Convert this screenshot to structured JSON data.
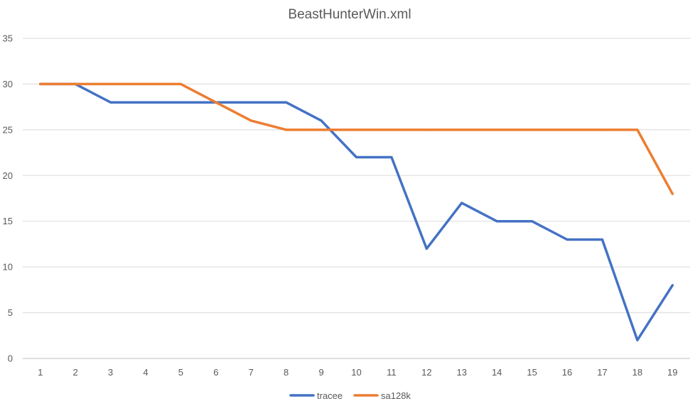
{
  "chart_data": {
    "type": "line",
    "title": "BeastHunterWin.xml",
    "xlabel": "",
    "ylabel": "",
    "categories": [
      "1",
      "2",
      "3",
      "4",
      "5",
      "6",
      "7",
      "8",
      "9",
      "10",
      "11",
      "12",
      "13",
      "14",
      "15",
      "16",
      "17",
      "18",
      "19"
    ],
    "ylim": [
      0,
      35
    ],
    "yticks": [
      0,
      5,
      10,
      15,
      20,
      25,
      30,
      35
    ],
    "grid": true,
    "legend_position": "bottom",
    "series": [
      {
        "name": "tracee",
        "color": "#4472c4",
        "values": [
          30,
          30,
          28,
          28,
          28,
          28,
          28,
          28,
          26,
          22,
          22,
          12,
          17,
          15,
          15,
          13,
          13,
          2,
          8
        ]
      },
      {
        "name": "sa128k",
        "color": "#ed7d31",
        "values": [
          30,
          30,
          30,
          30,
          30,
          28,
          26,
          25,
          25,
          25,
          25,
          25,
          25,
          25,
          25,
          25,
          25,
          25,
          18
        ]
      }
    ]
  }
}
